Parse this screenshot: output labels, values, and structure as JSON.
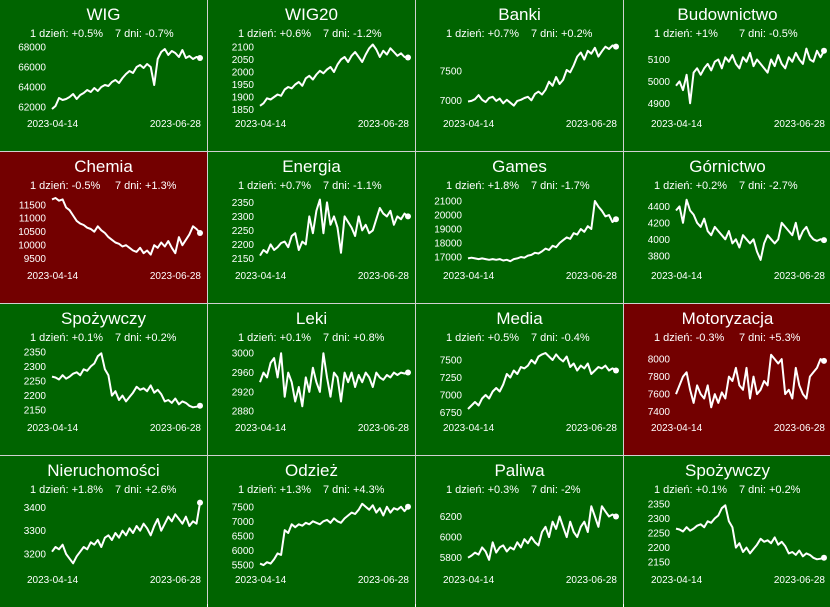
{
  "colors": {
    "up": "#006400",
    "down": "#730000",
    "border": "#d0d0d0",
    "line": "#ffffff"
  },
  "chart_data": [
    {
      "type": "line",
      "title": "WIG",
      "status": "up",
      "day1": "1 dzień: +0.5%",
      "day7": "7 dni: -0.7%",
      "date_start": "2023-04-14",
      "date_end": "2023-06-28",
      "yticks": [
        "68000",
        "66000",
        "64000",
        "62000"
      ],
      "yticks_num": [
        68000,
        66000,
        64000,
        62000
      ],
      "ylim": [
        61500,
        68500
      ],
      "values": [
        61800,
        62100,
        62900,
        62700,
        62800,
        63000,
        63300,
        62800,
        63200,
        63400,
        63700,
        63500,
        63900,
        63600,
        64000,
        64200,
        64100,
        64500,
        64700,
        64400,
        64900,
        65300,
        65600,
        65400,
        66000,
        66200,
        65900,
        66300,
        66000,
        64200,
        66800,
        67500,
        67800,
        67200,
        67600,
        67400,
        67000,
        67700,
        66900,
        67100,
        66800,
        67000,
        66900
      ]
    },
    {
      "type": "line",
      "title": "WIG20",
      "status": "up",
      "day1": "1 dzień: +0.6%",
      "day7": "7 dni: -1.2%",
      "date_start": "2023-04-14",
      "date_end": "2023-06-28",
      "yticks": [
        "2100",
        "2050",
        "2000",
        "1950",
        "1900",
        "1850"
      ],
      "yticks_num": [
        2100,
        2050,
        2000,
        1950,
        1900,
        1850
      ],
      "ylim": [
        1840,
        2120
      ],
      "values": [
        1865,
        1875,
        1895,
        1890,
        1900,
        1910,
        1905,
        1930,
        1940,
        1935,
        1950,
        1960,
        1945,
        1975,
        1985,
        1970,
        1990,
        2005,
        1995,
        2010,
        2020,
        2000,
        2030,
        2050,
        2060,
        2040,
        2065,
        2080,
        2060,
        2040,
        2070,
        2095,
        2110,
        2090,
        2060,
        2085,
        2070,
        2095,
        2080,
        2065,
        2075,
        2060,
        2058
      ]
    },
    {
      "type": "line",
      "title": "Banki",
      "status": "up",
      "day1": "1 dzień: +0.7%",
      "day7": "7 dni: +0.2%",
      "date_start": "2023-04-14",
      "date_end": "2023-06-28",
      "yticks": [
        "7500",
        "7000"
      ],
      "yticks_num": [
        7500,
        7000
      ],
      "ylim": [
        6800,
        8000
      ],
      "values": [
        6980,
        6990,
        7020,
        7090,
        7010,
        6970,
        7040,
        7060,
        6990,
        7030,
        6950,
        7010,
        6960,
        6910,
        6990,
        7010,
        7040,
        7060,
        7000,
        7110,
        7150,
        7100,
        7180,
        7320,
        7250,
        7400,
        7280,
        7350,
        7520,
        7480,
        7600,
        7750,
        7820,
        7700,
        7850,
        7800,
        7900,
        7750,
        7840,
        7920,
        7880,
        7940,
        7920
      ]
    },
    {
      "type": "line",
      "title": "Budownictwo",
      "status": "up",
      "day1": "1 dzień: +1%",
      "day7": "7 dni: -0.5%",
      "date_start": "2023-04-14",
      "date_end": "2023-06-28",
      "yticks": [
        "5100",
        "5000",
        "4900"
      ],
      "yticks_num": [
        5100,
        5000,
        4900
      ],
      "ylim": [
        4860,
        5180
      ],
      "values": [
        4980,
        5000,
        4960,
        5030,
        4900,
        5040,
        5060,
        5030,
        5060,
        5080,
        5050,
        5090,
        5100,
        5060,
        5110,
        5090,
        5120,
        5080,
        5060,
        5110,
        5090,
        5130,
        5070,
        5100,
        5080,
        5060,
        5040,
        5100,
        5070,
        5120,
        5080,
        5060,
        5110,
        5090,
        5130,
        5100,
        5080,
        5150,
        5100,
        5090,
        5140,
        5110,
        5140
      ]
    },
    {
      "type": "line",
      "title": "Chemia",
      "status": "down",
      "day1": "1 dzień: -0.5%",
      "day7": "7 dni: +1.3%",
      "date_start": "2023-04-14",
      "date_end": "2023-06-28",
      "yticks": [
        "11500",
        "11000",
        "10500",
        "10000",
        "9500"
      ],
      "yticks_num": [
        11500,
        11000,
        10500,
        10000,
        9500
      ],
      "ylim": [
        9300,
        11900
      ],
      "values": [
        11700,
        11750,
        11650,
        11700,
        11400,
        11300,
        11100,
        10900,
        10800,
        10750,
        10650,
        10600,
        10500,
        10700,
        10550,
        10450,
        10300,
        10200,
        10100,
        10050,
        9950,
        10000,
        9900,
        9800,
        9750,
        9900,
        9700,
        9800,
        9650,
        10000,
        9900,
        10100,
        9950,
        10150,
        9900,
        9700,
        10300,
        10000,
        10200,
        10400,
        10700,
        10600,
        10450
      ]
    },
    {
      "type": "line",
      "title": "Energia",
      "status": "up",
      "day1": "1 dzień: +0.7%",
      "day7": "7 dni: -1.1%",
      "date_start": "2023-04-14",
      "date_end": "2023-06-28",
      "yticks": [
        "2350",
        "2300",
        "2250",
        "2200",
        "2150"
      ],
      "yticks_num": [
        2350,
        2300,
        2250,
        2200,
        2150
      ],
      "ylim": [
        2130,
        2380
      ],
      "values": [
        2160,
        2180,
        2170,
        2200,
        2180,
        2190,
        2205,
        2210,
        2190,
        2230,
        2240,
        2180,
        2210,
        2200,
        2300,
        2240,
        2320,
        2360,
        2240,
        2350,
        2270,
        2300,
        2260,
        2170,
        2300,
        2280,
        2260,
        2230,
        2300,
        2250,
        2270,
        2240,
        2250,
        2290,
        2330,
        2310,
        2300,
        2320,
        2270,
        2300,
        2290,
        2310,
        2300
      ]
    },
    {
      "type": "line",
      "title": "Games",
      "status": "up",
      "day1": "1 dzień: +1.8%",
      "day7": "7 dni: -1.7%",
      "date_start": "2023-04-14",
      "date_end": "2023-06-28",
      "yticks": [
        "21000",
        "20000",
        "19000",
        "18000",
        "17000"
      ],
      "yticks_num": [
        21000,
        20000,
        19000,
        18000,
        17000
      ],
      "ylim": [
        16500,
        21500
      ],
      "values": [
        16900,
        16950,
        16900,
        16850,
        16900,
        16850,
        16800,
        16850,
        16800,
        16850,
        16750,
        16800,
        16700,
        16850,
        16900,
        17000,
        16950,
        17100,
        17150,
        17300,
        17250,
        17400,
        17600,
        17500,
        17800,
        17700,
        18000,
        18200,
        18400,
        18300,
        18700,
        18600,
        19000,
        18800,
        19200,
        19000,
        21000,
        20600,
        20300,
        19900,
        20000,
        19500,
        19700
      ]
    },
    {
      "type": "line",
      "title": "Górnictwo",
      "status": "up",
      "day1": "1 dzień: +0.2%",
      "day7": "7 dni: -2.7%",
      "date_start": "2023-04-14",
      "date_end": "2023-06-28",
      "yticks": [
        "4400",
        "4200",
        "4000",
        "3800"
      ],
      "yticks_num": [
        4400,
        4200,
        4000,
        3800
      ],
      "ylim": [
        3700,
        4550
      ],
      "values": [
        4350,
        4400,
        4200,
        4480,
        4350,
        4300,
        4200,
        4150,
        4250,
        4100,
        4050,
        4150,
        4100,
        4050,
        4000,
        4100,
        3950,
        4000,
        3900,
        4050,
        4000,
        3950,
        4000,
        3850,
        3750,
        3950,
        4050,
        4000,
        3950,
        4000,
        4200,
        4150,
        4100,
        4050,
        4200,
        4000,
        4100,
        4150,
        4050,
        4000,
        3980,
        4000,
        3990
      ]
    },
    {
      "type": "line",
      "title": "Spożywczy",
      "status": "up",
      "day1": "1 dzień: +0.1%",
      "day7": "7 dni: +0.2%",
      "date_start": "2023-04-14",
      "date_end": "2023-06-28",
      "yticks": [
        "2350",
        "2300",
        "2250",
        "2200",
        "2150"
      ],
      "yticks_num": [
        2350,
        2300,
        2250,
        2200,
        2150
      ],
      "ylim": [
        2130,
        2370
      ],
      "values": [
        2265,
        2262,
        2255,
        2270,
        2258,
        2265,
        2275,
        2280,
        2270,
        2290,
        2285,
        2300,
        2310,
        2335,
        2345,
        2290,
        2270,
        2200,
        2215,
        2185,
        2200,
        2180,
        2195,
        2210,
        2230,
        2220,
        2225,
        2215,
        2235,
        2210,
        2220,
        2205,
        2180,
        2185,
        2175,
        2190,
        2170,
        2180,
        2175,
        2165,
        2160,
        2162,
        2165
      ]
    },
    {
      "type": "line",
      "title": "Leki",
      "status": "up",
      "day1": "1 dzień: +0.1%",
      "day7": "7 dni: +0.8%",
      "date_start": "2023-04-14",
      "date_end": "2023-06-28",
      "yticks": [
        "3000",
        "2960",
        "2920",
        "2880"
      ],
      "yticks_num": [
        3000,
        2960,
        2920,
        2880
      ],
      "ylim": [
        2870,
        3015
      ],
      "values": [
        2940,
        2960,
        2950,
        2980,
        2990,
        2950,
        3000,
        2910,
        2960,
        2940,
        2900,
        2930,
        2890,
        2950,
        2920,
        2970,
        2940,
        2920,
        3000,
        2950,
        2910,
        2960,
        2950,
        2900,
        2960,
        2940,
        2960,
        2930,
        2955,
        2940,
        2960,
        2950,
        2930,
        2960,
        2950,
        2945,
        2955,
        2950,
        2960,
        2955,
        2960,
        2958,
        2960
      ]
    },
    {
      "type": "line",
      "title": "Media",
      "status": "up",
      "day1": "1 dzień: +0.5%",
      "day7": "7 dni: -0.4%",
      "date_start": "2023-04-14",
      "date_end": "2023-06-28",
      "yticks": [
        "7500",
        "7250",
        "7000",
        "6750"
      ],
      "yticks_num": [
        7500,
        7250,
        7000,
        6750
      ],
      "ylim": [
        6700,
        7700
      ],
      "values": [
        6800,
        6850,
        6900,
        6850,
        6950,
        7000,
        6950,
        7050,
        7100,
        7050,
        7150,
        7300,
        7250,
        7350,
        7300,
        7400,
        7380,
        7420,
        7500,
        7450,
        7550,
        7580,
        7600,
        7550,
        7500,
        7580,
        7520,
        7480,
        7550,
        7400,
        7450,
        7350,
        7420,
        7380,
        7450,
        7300,
        7350,
        7400,
        7380,
        7420,
        7350,
        7380,
        7350
      ]
    },
    {
      "type": "line",
      "title": "Motoryzacja",
      "status": "down",
      "day1": "1 dzień: -0.3%",
      "day7": "7 dni: +5.3%",
      "date_start": "2023-04-14",
      "date_end": "2023-06-28",
      "yticks": [
        "8000",
        "7800",
        "7600",
        "7400"
      ],
      "yticks_num": [
        8000,
        7800,
        7600,
        7400
      ],
      "ylim": [
        7350,
        8150
      ],
      "values": [
        7600,
        7700,
        7800,
        7850,
        7650,
        7500,
        7700,
        7600,
        7550,
        7700,
        7450,
        7600,
        7500,
        7620,
        7550,
        7800,
        7750,
        7900,
        7700,
        7650,
        7900,
        7550,
        7800,
        7600,
        7650,
        7750,
        7700,
        8050,
        8000,
        7950,
        8000,
        7600,
        7650,
        7550,
        7900,
        7700,
        7600,
        7550,
        7800,
        7850,
        7900,
        8000,
        7980
      ]
    },
    {
      "type": "line",
      "title": "Nieruchomości",
      "status": "up",
      "day1": "1 dzień: +1.8%",
      "day7": "7 dni: +2.6%",
      "date_start": "2023-04-14",
      "date_end": "2023-06-28",
      "yticks": [
        "3400",
        "3300",
        "3200"
      ],
      "yticks_num": [
        3400,
        3300,
        3200
      ],
      "ylim": [
        3140,
        3440
      ],
      "values": [
        3210,
        3230,
        3220,
        3240,
        3200,
        3180,
        3160,
        3190,
        3210,
        3230,
        3220,
        3250,
        3240,
        3260,
        3230,
        3270,
        3280,
        3260,
        3290,
        3270,
        3300,
        3280,
        3310,
        3290,
        3320,
        3300,
        3330,
        3310,
        3280,
        3320,
        3350,
        3300,
        3330,
        3360,
        3340,
        3370,
        3350,
        3330,
        3360,
        3320,
        3340,
        3330,
        3420
      ]
    },
    {
      "type": "line",
      "title": "Odzież",
      "status": "up",
      "day1": "1 dzień: +1.3%",
      "day7": "7 dni: +4.3%",
      "date_start": "2023-04-14",
      "date_end": "2023-06-28",
      "yticks": [
        "7500",
        "7000",
        "6500",
        "6000",
        "5500"
      ],
      "yticks_num": [
        7500,
        7000,
        6500,
        6000,
        5500
      ],
      "ylim": [
        5400,
        7800
      ],
      "values": [
        5550,
        5500,
        5600,
        5550,
        5700,
        5900,
        5850,
        6700,
        6600,
        6900,
        6800,
        6900,
        6850,
        6950,
        6900,
        7000,
        6950,
        6900,
        7000,
        7050,
        6950,
        7100,
        7000,
        6950,
        7100,
        7200,
        7300,
        7250,
        7400,
        7600,
        7500,
        7400,
        7550,
        7300,
        7450,
        7200,
        7500,
        7300,
        7450,
        7400,
        7500,
        7350,
        7500
      ]
    },
    {
      "type": "line",
      "title": "Paliwa",
      "status": "up",
      "day1": "1 dzień: +0.3%",
      "day7": "7 dni: -2%",
      "date_start": "2023-04-14",
      "date_end": "2023-06-28",
      "yticks": [
        "6200",
        "6000",
        "5800"
      ],
      "yticks_num": [
        6200,
        6000,
        5800
      ],
      "ylim": [
        5700,
        6380
      ],
      "values": [
        5800,
        5820,
        5850,
        5830,
        5900,
        5860,
        5780,
        5950,
        5850,
        5900,
        5920,
        5860,
        5900,
        5880,
        5950,
        5900,
        5980,
        5940,
        6000,
        5950,
        5920,
        6050,
        6100,
        6000,
        6150,
        6080,
        6200,
        6100,
        6000,
        6150,
        6050,
        6000,
        6100,
        6150,
        6050,
        6300,
        6200,
        6100,
        6300,
        6250,
        6200,
        6220,
        6200
      ]
    },
    {
      "type": "line",
      "title": "Spożywczy",
      "status": "up",
      "day1": "1 dzień: +0.1%",
      "day7": "7 dni: +0.2%",
      "date_start": "2023-04-14",
      "date_end": "2023-06-28",
      "yticks": [
        "2350",
        "2300",
        "2250",
        "2200",
        "2150"
      ],
      "yticks_num": [
        2350,
        2300,
        2250,
        2200,
        2150
      ],
      "ylim": [
        2130,
        2370
      ],
      "values": [
        2265,
        2262,
        2255,
        2270,
        2258,
        2265,
        2275,
        2280,
        2270,
        2290,
        2285,
        2300,
        2310,
        2335,
        2345,
        2290,
        2270,
        2200,
        2215,
        2185,
        2200,
        2180,
        2195,
        2210,
        2230,
        2220,
        2225,
        2215,
        2235,
        2210,
        2220,
        2205,
        2180,
        2185,
        2175,
        2190,
        2170,
        2180,
        2175,
        2165,
        2160,
        2162,
        2165
      ]
    }
  ]
}
